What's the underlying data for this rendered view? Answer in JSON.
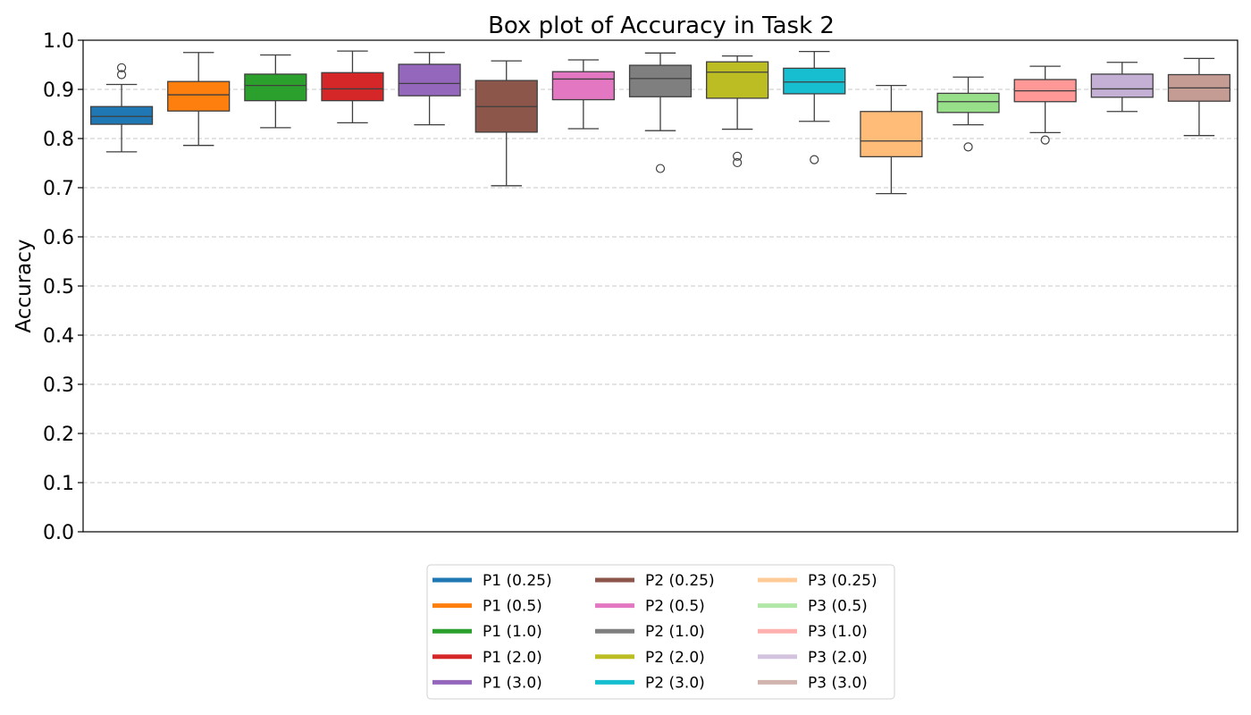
{
  "chart_data": {
    "type": "box",
    "title": "Box plot of Accuracy in Task 2",
    "xlabel": "",
    "ylabel": "Accuracy",
    "ylim": [
      0.0,
      1.0
    ],
    "yticks": [
      "0.0",
      "0.1",
      "0.2",
      "0.3",
      "0.4",
      "0.5",
      "0.6",
      "0.7",
      "0.8",
      "0.9",
      "1.0"
    ],
    "grid": "horizontal-dashed",
    "legend_placement": "bottom-center",
    "legend_columns": 3,
    "series": [
      {
        "name": "P1 (0.25)",
        "color": "#1f77b4",
        "whisker_low": 0.773,
        "q1": 0.829,
        "median": 0.845,
        "q3": 0.865,
        "whisker_high": 0.91,
        "outliers": [
          0.93,
          0.944
        ]
      },
      {
        "name": "P1 (0.5)",
        "color": "#ff7f0e",
        "whisker_low": 0.786,
        "q1": 0.856,
        "median": 0.889,
        "q3": 0.916,
        "whisker_high": 0.975,
        "outliers": []
      },
      {
        "name": "P1 (1.0)",
        "color": "#2ca02c",
        "whisker_low": 0.822,
        "q1": 0.877,
        "median": 0.908,
        "q3": 0.931,
        "whisker_high": 0.97,
        "outliers": []
      },
      {
        "name": "P1 (2.0)",
        "color": "#d62728",
        "whisker_low": 0.832,
        "q1": 0.877,
        "median": 0.901,
        "q3": 0.934,
        "whisker_high": 0.978,
        "outliers": []
      },
      {
        "name": "P1 (3.0)",
        "color": "#9467bd",
        "whisker_low": 0.828,
        "q1": 0.887,
        "median": 0.912,
        "q3": 0.951,
        "whisker_high": 0.975,
        "outliers": []
      },
      {
        "name": "P2 (0.25)",
        "color": "#8c564b",
        "whisker_low": 0.704,
        "q1": 0.813,
        "median": 0.865,
        "q3": 0.918,
        "whisker_high": 0.958,
        "outliers": []
      },
      {
        "name": "P2 (0.5)",
        "color": "#e377c2",
        "whisker_low": 0.82,
        "q1": 0.879,
        "median": 0.921,
        "q3": 0.936,
        "whisker_high": 0.96,
        "outliers": []
      },
      {
        "name": "P2 (1.0)",
        "color": "#7f7f7f",
        "whisker_low": 0.816,
        "q1": 0.885,
        "median": 0.922,
        "q3": 0.949,
        "whisker_high": 0.974,
        "outliers": [
          0.739
        ]
      },
      {
        "name": "P2 (2.0)",
        "color": "#bcbd22",
        "whisker_low": 0.819,
        "q1": 0.882,
        "median": 0.935,
        "q3": 0.956,
        "whisker_high": 0.968,
        "outliers": [
          0.751,
          0.764
        ]
      },
      {
        "name": "P2 (3.0)",
        "color": "#17becf",
        "whisker_low": 0.835,
        "q1": 0.891,
        "median": 0.915,
        "q3": 0.943,
        "whisker_high": 0.977,
        "outliers": [
          0.757
        ]
      },
      {
        "name": "P3 (0.25)",
        "color": "#ffbb78",
        "whisker_low": 0.688,
        "q1": 0.763,
        "median": 0.795,
        "q3": 0.855,
        "whisker_high": 0.908,
        "outliers": []
      },
      {
        "name": "P3 (0.5)",
        "color": "#98df8a",
        "whisker_low": 0.828,
        "q1": 0.853,
        "median": 0.875,
        "q3": 0.892,
        "whisker_high": 0.925,
        "outliers": [
          0.783
        ]
      },
      {
        "name": "P3 (1.0)",
        "color": "#ff9896",
        "whisker_low": 0.812,
        "q1": 0.875,
        "median": 0.897,
        "q3": 0.92,
        "whisker_high": 0.947,
        "outliers": [
          0.797
        ]
      },
      {
        "name": "P3 (2.0)",
        "color": "#c5b0d5",
        "whisker_low": 0.855,
        "q1": 0.884,
        "median": 0.901,
        "q3": 0.931,
        "whisker_high": 0.955,
        "outliers": []
      },
      {
        "name": "P3 (3.0)",
        "color": "#c49c94",
        "whisker_low": 0.806,
        "q1": 0.876,
        "median": 0.903,
        "q3": 0.93,
        "whisker_high": 0.963,
        "outliers": []
      }
    ],
    "legend_faded": [
      "P3 (0.25)",
      "P3 (0.5)",
      "P3 (1.0)",
      "P3 (2.0)",
      "P3 (3.0)"
    ]
  }
}
